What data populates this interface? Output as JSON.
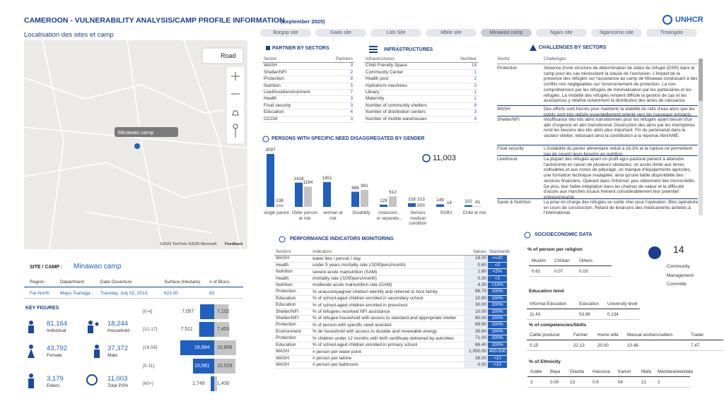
{
  "header": {
    "title": "CAMEROON - VULNERABILITY ANALYSIS/CAMP PROFILE INFORMATION",
    "subtitle": "(September 2025)",
    "logo": "UNHCR"
  },
  "map": {
    "title": "Localisation des sites et camp",
    "road": "Road",
    "marker": "Minawao camp",
    "attribution": "©2025 TomTom ©2025 Microsoft",
    "feedback": "Feedback"
  },
  "tabs": [
    "Borgop site",
    "Gado site",
    "Lolo Site",
    "Mbile site",
    "Minawao camp",
    "Ngam site",
    "Ngarissimo site",
    "Timangolo"
  ],
  "selected_tab": 4,
  "partners": {
    "title": "PARTNER BY SECTORS",
    "columns": [
      "Sector",
      "Partners"
    ],
    "rows": [
      [
        "WASH",
        3
      ],
      [
        "Shelter/NFI",
        2
      ],
      [
        "Protection",
        8
      ],
      [
        "Nutrition",
        5
      ],
      [
        "Livelihood/environment",
        7
      ],
      [
        "Health",
        3
      ],
      [
        "Food security",
        3
      ],
      [
        "Education",
        4
      ],
      [
        "CCCM",
        3
      ]
    ]
  },
  "infrastructures": {
    "title": "INFRASTRUCTURES",
    "columns": [
      "Infrastructures",
      "Number"
    ],
    "rows": [
      [
        "Child Friendly Space",
        19
      ],
      [
        "Community Center",
        1
      ],
      [
        "Health post",
        2
      ],
      [
        "Hydraform machines",
        3
      ],
      [
        "Library",
        1
      ],
      [
        "Maternity",
        1
      ],
      [
        "Number of community shelters",
        8
      ],
      [
        "Number of distribution centers",
        3
      ],
      [
        "Number of mobile warehouses",
        4
      ]
    ]
  },
  "challenges": {
    "title": "CHALLENGES BY SECTORS",
    "columns": [
      "Sector",
      "Challenges"
    ],
    "rows": [
      [
        "Protection",
        "Absence d'une structure de détermination de statut de réfugié (DSR) dans le camp pour les cas nécessitant la clause de l'exclusion. L'impact de la présence des réfugiés sur l'assistance au camp de Minawao conduisant à des conflits non négligeables sur l'environnement de protection. La non-compréhension par les réfugiés de minimalisation par les partenaires et les réfugiés. La mobilité des réfugiés rendent difficile la gestion de cas et les assistances y relative notamment la distribution des actes de naissance."
      ],
      [
        "WASH",
        "Des efforts sont fournis pour maintenir la stabilité du ratio d'eau alors que les points sont très réduits essentiellement orienté vers les nouveaux arrivants."
      ],
      [
        "Shelter/NFI",
        "Insuffisance des kits abris transitionnels pour les réfugiés ayant besoin d'un abri d'urgence en abri transitionnel. Destruction des abris par les intempéries rend les besoins des kits abris plus important. Fin du partenariat dans le secteur shelter, réduisant ainsi la contribution à la réponse Abri/AME."
      ],
      [
        "Food security",
        "L'instabilité du panier alimentaire réduit à 16,3% et la rupture ne permettent pas de couvrir leurs besoins en nutrition."
      ],
      [
        "Livelihood",
        "La plupart des réfugiés ayant un profil agro-pastoral peinent à atteindre l'autonomie en raison de plusieurs obstacles: un accès limité aux terres cultivables et aux zones de pâturage, un manque d'équipements agricoles, une formation technique inadaptée, ainsi qu'une faible disponibilité des services financiers. Opérant dans l'informel, peu obtiennent des microcrédits. De plus, leur faible intégration dans les chaînes de valeur et la difficulté d'accès aux marchés locaux freinent considérablement leur potentiel entrepreneurial."
      ],
      [
        "Sante & Nutrition",
        "La prise en charge des réfugiés se coûte cher pour l'opération. Bloc opératoire en cours de construction. Retard de livraisons des médicaments achetés à l'international."
      ]
    ]
  },
  "chart_data": [
    {
      "type": "bar",
      "title": "PERSONS WITH SPECIFIC NEED DISAGGREGATED BY GENDER",
      "total_label": "11,003",
      "categories": [
        "single parent",
        "Older person at risk",
        "woman at risk",
        "Disability",
        "Unaccom... or separate...",
        "Serious medical condition",
        "SGBV",
        "Child at risk"
      ],
      "series": [
        {
          "color": "#1f5fbf",
          "values": [
            3097,
            1418,
            1451,
            886,
            129,
            218,
            149,
            102
          ]
        },
        {
          "color": "#c4c4c4",
          "values": [
            138,
            1184,
            null,
            991,
            612,
            213,
            14,
            41
          ]
        }
      ]
    },
    {
      "type": "bar",
      "orientation": "horizontal",
      "categories": [
        "[0-4]",
        "[12-17]",
        "[18-59]",
        "[5-11]",
        "[60+]"
      ],
      "series": [
        {
          "color": "#1f5fbf",
          "values": [
            7057,
            7511,
            16894,
            10581,
            1749
          ],
          "value_labels": [
            "7,057",
            "7,511",
            "16,894",
            "10,581",
            "1,749"
          ]
        },
        {
          "color": "#c4c4c4",
          "values": [
            7102,
            7453,
            10858,
            10529,
            1430
          ],
          "value_labels": [
            "7,102",
            "7,453",
            "10,858",
            "10,529",
            "1,430"
          ]
        }
      ]
    }
  ],
  "performance": {
    "title": "PERFORMANCE INDICATORS MONITORING",
    "columns": [
      "Sectors",
      "Indicators",
      "Values",
      "Standards"
    ],
    "rows": [
      [
        "WASH",
        "water litre / person / day",
        "18.00",
        ">=20"
      ],
      [
        "Health",
        "under 5 years mortality rate (/1000pers/month)",
        "0.60",
        "<2"
      ],
      [
        "Nutrition",
        "severe acute malnutrition (SAM)",
        "1.60",
        "<2%"
      ],
      [
        "Health",
        "mortality rate (/1000pers/month)",
        "0.30",
        "<1"
      ],
      [
        "Nutrition",
        "moderate acute malnutrition rate (GAM)",
        "4.30",
        "<10%"
      ],
      [
        "Protection",
        "% unaccompagned children identify and referred to host family",
        "86.70",
        "100%"
      ],
      [
        "Education",
        "% of school-aged children enrolled in secondary school",
        "10.80",
        "100%"
      ],
      [
        "Education",
        "% of school-aged children enrolled in preschool",
        "30.00",
        "100%"
      ],
      [
        "Shelter/NFI",
        "% of refugees received NFI assistance",
        "10.00",
        "100%"
      ],
      [
        "Shelter/NFI",
        "% of refugee household with access to standard and appropriate shelter",
        "80.00",
        "100%"
      ],
      [
        "Protection",
        "% of person with specific need assisted",
        "89.90",
        "100%"
      ],
      [
        "Environment",
        "% de household with access to durable and renewable energy",
        "35.60",
        "100%"
      ],
      [
        "Protection",
        "% children under 12 months with birth certificate delivered by autorities",
        "71.00",
        "100%"
      ],
      [
        "Education",
        "% of school-aged children enrolled in primary school",
        "86.40",
        "100%"
      ],
      [
        "WASH",
        "# person per water point",
        "1,050.00",
        "400-500"
      ],
      [
        "WASH",
        "# person per latrine",
        "26.00",
        "<10"
      ],
      [
        "WASH",
        "# person per bathroom",
        "0.00",
        "<10"
      ]
    ]
  },
  "site": {
    "label": "SITE / CAMP :",
    "name": "Minawao camp",
    "columns": [
      "Region",
      "Department",
      "Date Ouverture",
      "Surface (Hectare)",
      "# of Blocs"
    ],
    "row": [
      "Far-North",
      "Mayo-Tsanaga",
      "Tuesday, July 02, 2013",
      "623.00",
      "83"
    ]
  },
  "key_figures": {
    "title": "KEY FIGURES",
    "items": [
      {
        "value": "81,164",
        "label": "Individual"
      },
      {
        "value": "18,244",
        "label": "Household"
      },
      {
        "value": "43,792",
        "label": "Female"
      },
      {
        "value": "37,372",
        "label": "Male"
      },
      {
        "value": "3,179",
        "label": "Elders"
      },
      {
        "value": "11,003",
        "label": "Total PSN"
      }
    ]
  },
  "socio": {
    "title": "SOCIOECONOMIC DATA",
    "religion": {
      "title": "% of person per religion",
      "columns": [
        "Muslim",
        "Chritian",
        "Others"
      ],
      "values": [
        "0.61",
        "0.07",
        "0.03"
      ]
    },
    "committee": {
      "value": "14",
      "label": "Community Management Committe"
    },
    "education": {
      "title": "Education level",
      "columns": [
        "Informal Education",
        "Education",
        "University level"
      ],
      "values": [
        "11.43",
        "53.88",
        "0.134"
      ]
    },
    "skills": {
      "title": "% of competencies/Skills",
      "columns": [
        "Cattle producer",
        "Farmer",
        "Home wife",
        "Manual workers/sellers",
        "Trader"
      ],
      "values": [
        "0.15",
        "22.13",
        "20.00",
        "10.48",
        "7.47"
      ]
    },
    "ethnicity": {
      "title": "% of Ethnicity",
      "columns": [
        "Arabe",
        "Baya",
        "Glavda",
        "Haoussa",
        "Kanuri",
        "Mafa",
        "Mandara/wandala"
      ],
      "values": [
        "3",
        "0.00",
        "13",
        "0.6",
        "54",
        "21",
        "2"
      ]
    }
  }
}
